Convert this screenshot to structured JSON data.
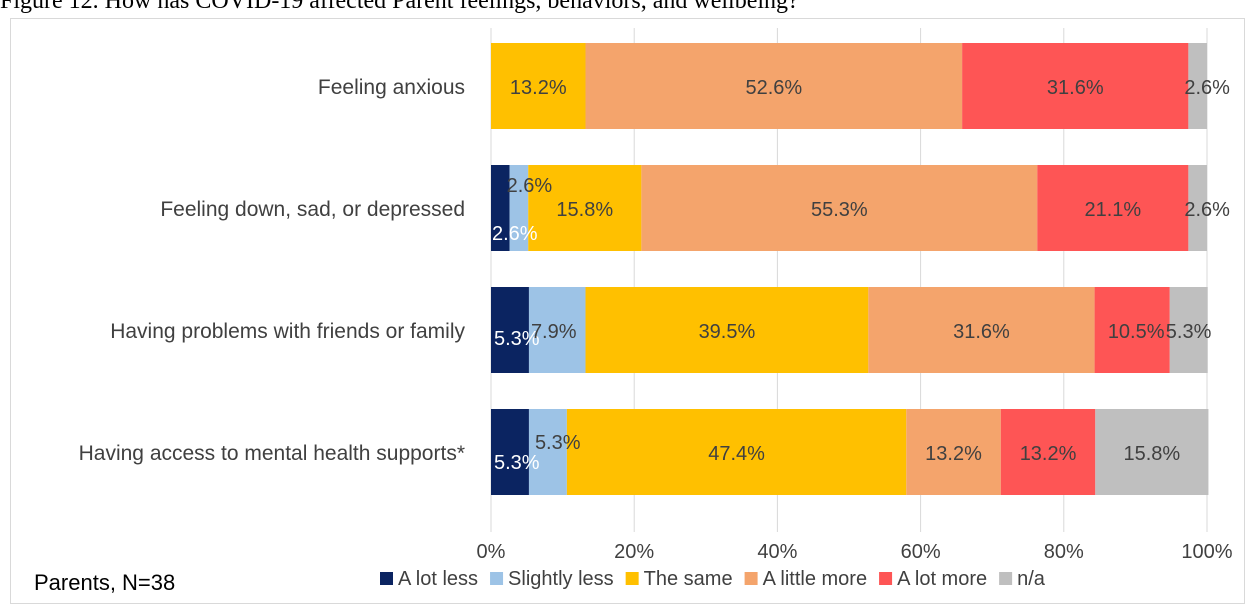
{
  "chart_data": {
    "type": "bar",
    "orientation": "horizontal-stacked",
    "title": "Figure 12. How has COVID-19 affected Parent feelings, behaviors, and wellbeing?",
    "note": "Parents, N=38",
    "categories": [
      "Feeling anxious",
      "Feeling down, sad, or depressed",
      "Having problems with friends or family",
      "Having access to mental health supports*"
    ],
    "series": [
      {
        "name": "A lot less",
        "color": "#0b2461",
        "values": [
          0,
          2.6,
          5.3,
          5.3
        ],
        "labels": [
          "",
          "2.6%",
          "5.3%",
          "5.3%"
        ]
      },
      {
        "name": "Slightly less",
        "color": "#9dc3e6",
        "values": [
          0,
          2.6,
          7.9,
          5.3
        ],
        "labels": [
          "",
          "2.6%",
          "7.9%",
          "5.3%"
        ]
      },
      {
        "name": "The same",
        "color": "#ffc000",
        "values": [
          13.2,
          15.8,
          39.5,
          47.4
        ],
        "labels": [
          "13.2%",
          "15.8%",
          "39.5%",
          "47.4%"
        ]
      },
      {
        "name": "A little more",
        "color": "#f4a46c",
        "values": [
          52.6,
          55.3,
          31.6,
          13.2
        ],
        "labels": [
          "52.6%",
          "55.3%",
          "31.6%",
          "13.2%"
        ]
      },
      {
        "name": "A lot more",
        "color": "#fe5555",
        "values": [
          31.6,
          21.1,
          10.5,
          13.2
        ],
        "labels": [
          "31.6%",
          "21.1%",
          "10.5%",
          "13.2%"
        ]
      },
      {
        "name": "n/a",
        "color": "#bfbfbf",
        "values": [
          2.6,
          2.6,
          5.3,
          15.8
        ],
        "labels": [
          "2.6%",
          "2.6%",
          "5.3%",
          "15.8%"
        ]
      }
    ],
    "xlim": [
      0,
      100
    ],
    "xticks": [
      "0%",
      "20%",
      "40%",
      "60%",
      "80%",
      "100%"
    ],
    "grid": true,
    "legend": "bottom"
  }
}
